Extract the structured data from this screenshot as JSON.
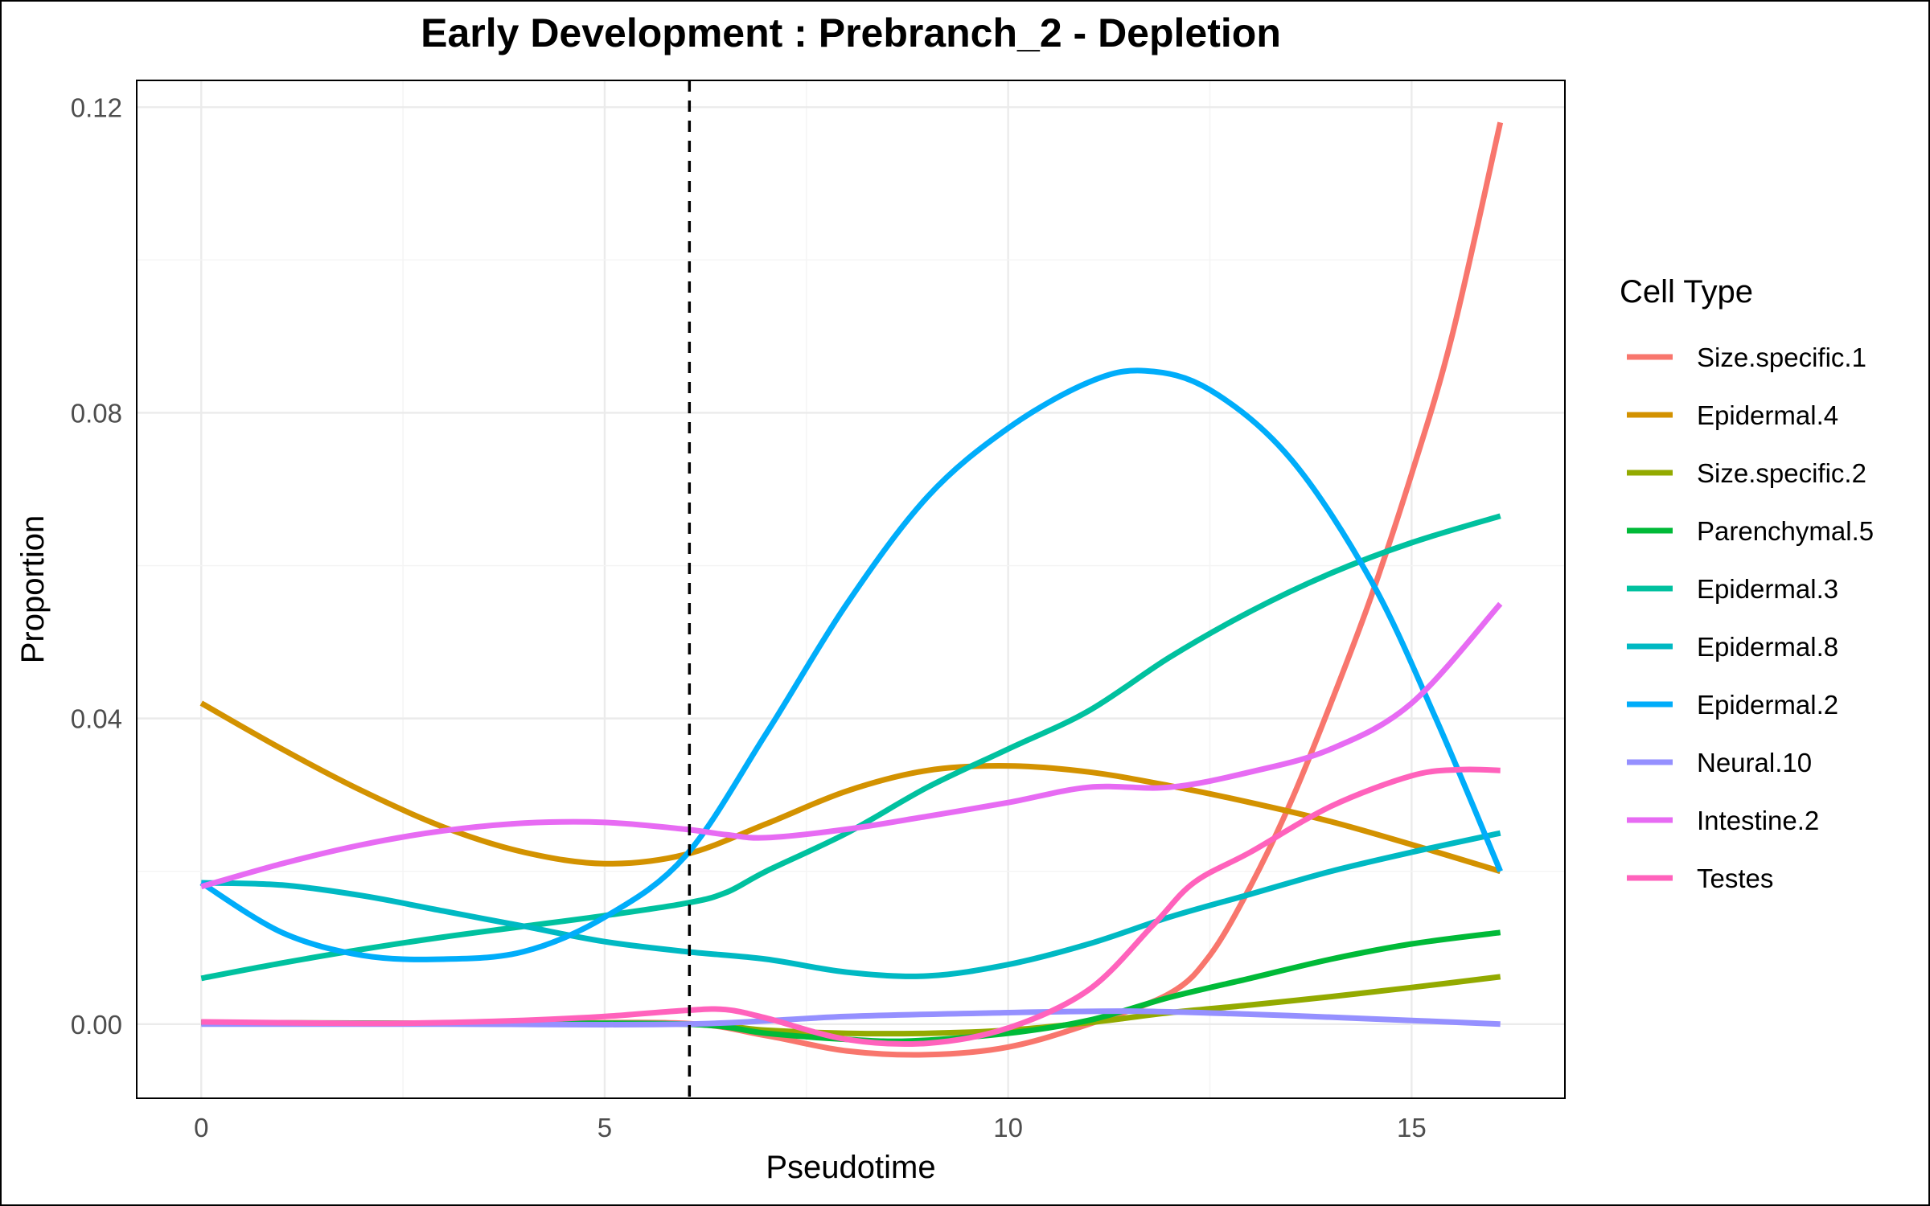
{
  "chart_data": {
    "type": "line",
    "title": "Early Development : Prebranch_2 - Depletion",
    "xlabel": "Pseudotime",
    "ylabel": "Proportion",
    "xlim": [
      -0.8,
      16.9
    ],
    "ylim": [
      -0.0097,
      0.1235
    ],
    "x_ticks": [
      0,
      5,
      10,
      15
    ],
    "x_tick_labels": [
      "0",
      "5",
      "10",
      "15"
    ],
    "y_ticks": [
      0.0,
      0.04,
      0.08,
      0.12
    ],
    "y_tick_labels": [
      "0.00",
      "0.04",
      "0.08",
      "0.12"
    ],
    "grid": true,
    "vline": {
      "x": 6.05,
      "style": "dashed"
    },
    "legend": {
      "title": "Cell Type",
      "position": "right"
    },
    "series": [
      {
        "name": "Size.specific.1",
        "color": "#F8766D",
        "points": [
          [
            0,
            0.0002
          ],
          [
            2,
            0.0001
          ],
          [
            4,
            0.0001
          ],
          [
            6,
            0.0001
          ],
          [
            7,
            -0.0015
          ],
          [
            8,
            -0.0035
          ],
          [
            9,
            -0.004
          ],
          [
            10,
            -0.003
          ],
          [
            11,
            0.0
          ],
          [
            12,
            0.004
          ],
          [
            12.5,
            0.009
          ],
          [
            13,
            0.018
          ],
          [
            13.5,
            0.029
          ],
          [
            14,
            0.042
          ],
          [
            14.5,
            0.056
          ],
          [
            15,
            0.072
          ],
          [
            15.5,
            0.09
          ],
          [
            16.1,
            0.118
          ]
        ]
      },
      {
        "name": "Epidermal.4",
        "color": "#D39200",
        "points": [
          [
            0,
            0.042
          ],
          [
            1,
            0.036
          ],
          [
            2,
            0.0305
          ],
          [
            3,
            0.0258
          ],
          [
            4,
            0.0225
          ],
          [
            5,
            0.021
          ],
          [
            6,
            0.0222
          ],
          [
            7,
            0.0262
          ],
          [
            8,
            0.0305
          ],
          [
            9,
            0.0332
          ],
          [
            10,
            0.0338
          ],
          [
            11,
            0.033
          ],
          [
            12,
            0.0312
          ],
          [
            13,
            0.029
          ],
          [
            14,
            0.0265
          ],
          [
            15,
            0.0235
          ],
          [
            16.1,
            0.02
          ]
        ]
      },
      {
        "name": "Size.specific.2",
        "color": "#93AA00",
        "points": [
          [
            0,
            0.0002
          ],
          [
            3,
            0.0001
          ],
          [
            6,
            0.0
          ],
          [
            7,
            -0.0008
          ],
          [
            8,
            -0.0012
          ],
          [
            9,
            -0.0012
          ],
          [
            10,
            -0.0008
          ],
          [
            11,
            0.0002
          ],
          [
            12,
            0.0015
          ],
          [
            13,
            0.0025
          ],
          [
            14,
            0.0036
          ],
          [
            15,
            0.0048
          ],
          [
            16.1,
            0.0062
          ]
        ]
      },
      {
        "name": "Parenchymal.5",
        "color": "#00BA38",
        "points": [
          [
            0,
            0.0002
          ],
          [
            3,
            0.0001
          ],
          [
            6,
            0.0
          ],
          [
            7,
            -0.0012
          ],
          [
            8,
            -0.002
          ],
          [
            8.8,
            -0.0022
          ],
          [
            10,
            -0.0012
          ],
          [
            11,
            0.0005
          ],
          [
            12,
            0.0035
          ],
          [
            13,
            0.006
          ],
          [
            14,
            0.0085
          ],
          [
            15,
            0.0105
          ],
          [
            16.1,
            0.012
          ]
        ]
      },
      {
        "name": "Epidermal.3",
        "color": "#00C19F",
        "points": [
          [
            0,
            0.006
          ],
          [
            1,
            0.008
          ],
          [
            2,
            0.0098
          ],
          [
            3,
            0.0114
          ],
          [
            4,
            0.0128
          ],
          [
            5,
            0.0142
          ],
          [
            6,
            0.0158
          ],
          [
            6.5,
            0.0172
          ],
          [
            7,
            0.02
          ],
          [
            8,
            0.025
          ],
          [
            9,
            0.031
          ],
          [
            10,
            0.036
          ],
          [
            11,
            0.041
          ],
          [
            12,
            0.048
          ],
          [
            13,
            0.054
          ],
          [
            14,
            0.059
          ],
          [
            15,
            0.063
          ],
          [
            16.1,
            0.0665
          ]
        ]
      },
      {
        "name": "Epidermal.8",
        "color": "#00B9C3",
        "points": [
          [
            0,
            0.0185
          ],
          [
            1,
            0.0182
          ],
          [
            2,
            0.0168
          ],
          [
            3,
            0.0148
          ],
          [
            4,
            0.0128
          ],
          [
            5,
            0.0108
          ],
          [
            6,
            0.0095
          ],
          [
            7,
            0.0085
          ],
          [
            8,
            0.0068
          ],
          [
            9,
            0.0063
          ],
          [
            10,
            0.0078
          ],
          [
            11,
            0.0105
          ],
          [
            12,
            0.014
          ],
          [
            13,
            0.017
          ],
          [
            14,
            0.02
          ],
          [
            15,
            0.0225
          ],
          [
            16.1,
            0.025
          ]
        ]
      },
      {
        "name": "Epidermal.2",
        "color": "#00ADFA",
        "points": [
          [
            0,
            0.0185
          ],
          [
            1,
            0.012
          ],
          [
            2,
            0.009
          ],
          [
            3,
            0.0085
          ],
          [
            4,
            0.0095
          ],
          [
            5,
            0.014
          ],
          [
            6,
            0.022
          ],
          [
            7,
            0.038
          ],
          [
            8,
            0.055
          ],
          [
            9,
            0.069
          ],
          [
            10,
            0.078
          ],
          [
            11,
            0.084
          ],
          [
            11.7,
            0.0855
          ],
          [
            12.5,
            0.083
          ],
          [
            13.5,
            0.074
          ],
          [
            14.5,
            0.058
          ],
          [
            15.3,
            0.04
          ],
          [
            16.1,
            0.02
          ]
        ]
      },
      {
        "name": "Neural.10",
        "color": "#9590FF",
        "points": [
          [
            0,
            0.0
          ],
          [
            3,
            0.0
          ],
          [
            6,
            0.0
          ],
          [
            8,
            0.001
          ],
          [
            10,
            0.0015
          ],
          [
            11.5,
            0.0017
          ],
          [
            13,
            0.0013
          ],
          [
            14.5,
            0.0007
          ],
          [
            16.1,
            0.0
          ]
        ]
      },
      {
        "name": "Intestine.2",
        "color": "#E76BF3",
        "points": [
          [
            0,
            0.018
          ],
          [
            1,
            0.021
          ],
          [
            2,
            0.0235
          ],
          [
            3,
            0.0253
          ],
          [
            4,
            0.0263
          ],
          [
            5,
            0.0264
          ],
          [
            6,
            0.0255
          ],
          [
            6.5,
            0.0248
          ],
          [
            7,
            0.0244
          ],
          [
            8,
            0.0255
          ],
          [
            9,
            0.0272
          ],
          [
            10,
            0.029
          ],
          [
            11,
            0.031
          ],
          [
            12,
            0.031
          ],
          [
            13,
            0.033
          ],
          [
            14,
            0.036
          ],
          [
            15,
            0.042
          ],
          [
            16.1,
            0.055
          ]
        ]
      },
      {
        "name": "Testes",
        "color": "#FF62BC",
        "points": [
          [
            0,
            0.0003
          ],
          [
            2,
            0.0001
          ],
          [
            3,
            0.0002
          ],
          [
            4,
            0.0005
          ],
          [
            5,
            0.001
          ],
          [
            6,
            0.0018
          ],
          [
            6.5,
            0.0019
          ],
          [
            7,
            0.0008
          ],
          [
            8,
            -0.002
          ],
          [
            9,
            -0.0025
          ],
          [
            10,
            -0.0005
          ],
          [
            11,
            0.0045
          ],
          [
            11.8,
            0.013
          ],
          [
            12.3,
            0.0185
          ],
          [
            13,
            0.0225
          ],
          [
            14,
            0.0285
          ],
          [
            15,
            0.0325
          ],
          [
            15.6,
            0.0333
          ],
          [
            16.1,
            0.0332
          ]
        ]
      }
    ]
  }
}
